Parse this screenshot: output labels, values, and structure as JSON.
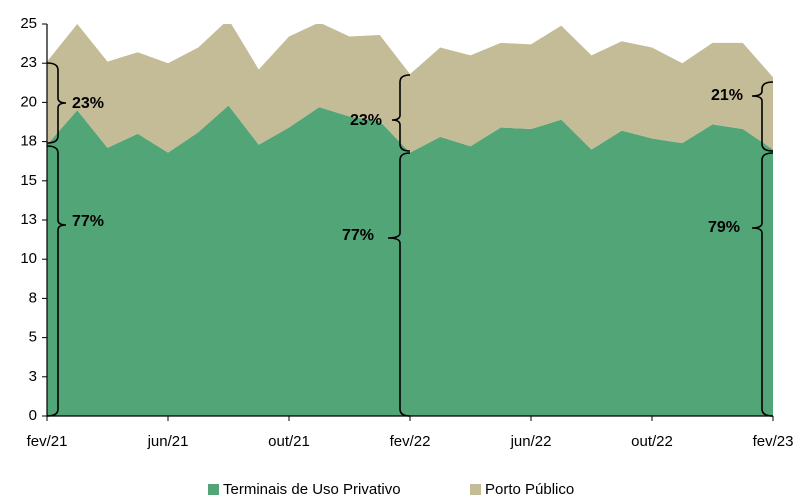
{
  "chart_data": {
    "type": "stacked-area",
    "categories": [
      "fev/21",
      null,
      null,
      null,
      "jun/21",
      null,
      null,
      null,
      "out/21",
      null,
      null,
      null,
      "fev/22",
      null,
      null,
      null,
      "jun/22",
      null,
      null,
      null,
      "out/22",
      null,
      null,
      null,
      "fev/23"
    ],
    "series": [
      {
        "name": "Terminais de Uso Privativo",
        "color": "#52a577",
        "values": [
          17.3,
          19.5,
          17.1,
          18.0,
          16.8,
          18.1,
          19.8,
          17.3,
          18.4,
          19.7,
          19.1,
          18.8,
          16.8,
          17.8,
          17.2,
          18.4,
          18.3,
          18.9,
          17.0,
          18.2,
          17.7,
          17.4,
          18.6,
          18.3,
          17.0
        ]
      },
      {
        "name": "Porto Público",
        "color": "#c4bb97",
        "values": [
          5.3,
          5.5,
          5.5,
          5.2,
          5.7,
          5.4,
          5.5,
          4.8,
          5.8,
          5.4,
          5.1,
          5.5,
          5.0,
          5.7,
          5.8,
          5.4,
          5.4,
          6.0,
          6.0,
          5.7,
          5.8,
          5.1,
          5.2,
          5.5,
          4.6
        ]
      }
    ],
    "ylim": [
      0,
      25
    ],
    "yticks": [
      0,
      {
        "value": 2.5,
        "label": "3"
      },
      5,
      {
        "value": 7.5,
        "label": "8"
      },
      10,
      {
        "value": 12.5,
        "label": "13"
      },
      15,
      {
        "value": 17.5,
        "label": "18"
      },
      20,
      {
        "value": 22.5,
        "label": "23"
      },
      25
    ],
    "annotations": [
      "23%",
      "77%",
      "23%",
      "77%",
      "21%",
      "79%"
    ]
  }
}
